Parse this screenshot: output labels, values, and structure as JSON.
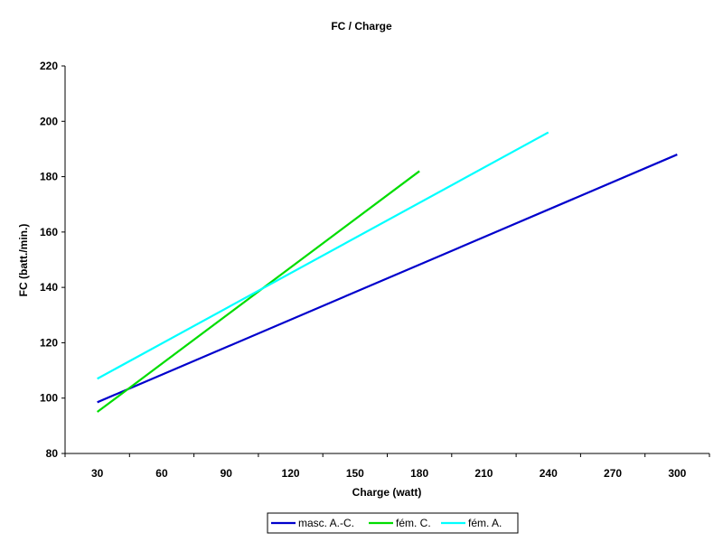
{
  "chart_data": {
    "type": "line",
    "title": "FC / Charge",
    "xlabel": "Charge (watt)",
    "ylabel": "FC (batt./min.)",
    "xlim": [
      15,
      315
    ],
    "ylim": [
      80,
      220
    ],
    "xticks": [
      30,
      60,
      90,
      120,
      150,
      180,
      210,
      240,
      270,
      300
    ],
    "yticks": [
      80,
      100,
      120,
      140,
      160,
      180,
      200,
      220
    ],
    "grid": false,
    "legend_position": "bottom",
    "series": [
      {
        "name": "masc. A.-C.",
        "color": "#0000cc",
        "x": [
          30,
          300
        ],
        "y": [
          98.5,
          188
        ]
      },
      {
        "name": "fém. C.",
        "color": "#00dd00",
        "x": [
          30,
          180
        ],
        "y": [
          95,
          182
        ]
      },
      {
        "name": "fém. A.",
        "color": "#00ffff",
        "x": [
          30,
          240
        ],
        "y": [
          107,
          196
        ]
      }
    ]
  }
}
